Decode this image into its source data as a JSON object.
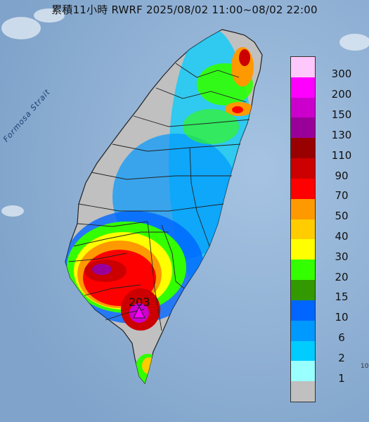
{
  "title": "累積11小時 RWRF 2025/08/02 11:00~08/02 22:00",
  "strait_label": "Formosa Strait",
  "max_value_label": "203",
  "corner_mark": "10",
  "legend": {
    "unit": "",
    "classes": [
      {
        "label": "300",
        "color": "#ffc8fc"
      },
      {
        "label": "200",
        "color": "#ff00ff"
      },
      {
        "label": "150",
        "color": "#cc00cc"
      },
      {
        "label": "130",
        "color": "#990099"
      },
      {
        "label": "110",
        "color": "#990000"
      },
      {
        "label": "90",
        "color": "#cc0000"
      },
      {
        "label": "70",
        "color": "#ff0000"
      },
      {
        "label": "50",
        "color": "#ff9900"
      },
      {
        "label": "40",
        "color": "#ffcc00"
      },
      {
        "label": "30",
        "color": "#ffff00"
      },
      {
        "label": "20",
        "color": "#33ff00"
      },
      {
        "label": "15",
        "color": "#339900"
      },
      {
        "label": "10",
        "color": "#0066ff"
      },
      {
        "label": "6",
        "color": "#0099ff"
      },
      {
        "label": "2",
        "color": "#00ccff"
      },
      {
        "label": "1",
        "color": "#99ffff"
      },
      {
        "label": "",
        "color": "#c0c0c0"
      }
    ]
  },
  "map_colors": {
    "sea": "#8fb2d6",
    "land_no_rain": "#c0c0c0",
    "boundary": "#222222"
  }
}
